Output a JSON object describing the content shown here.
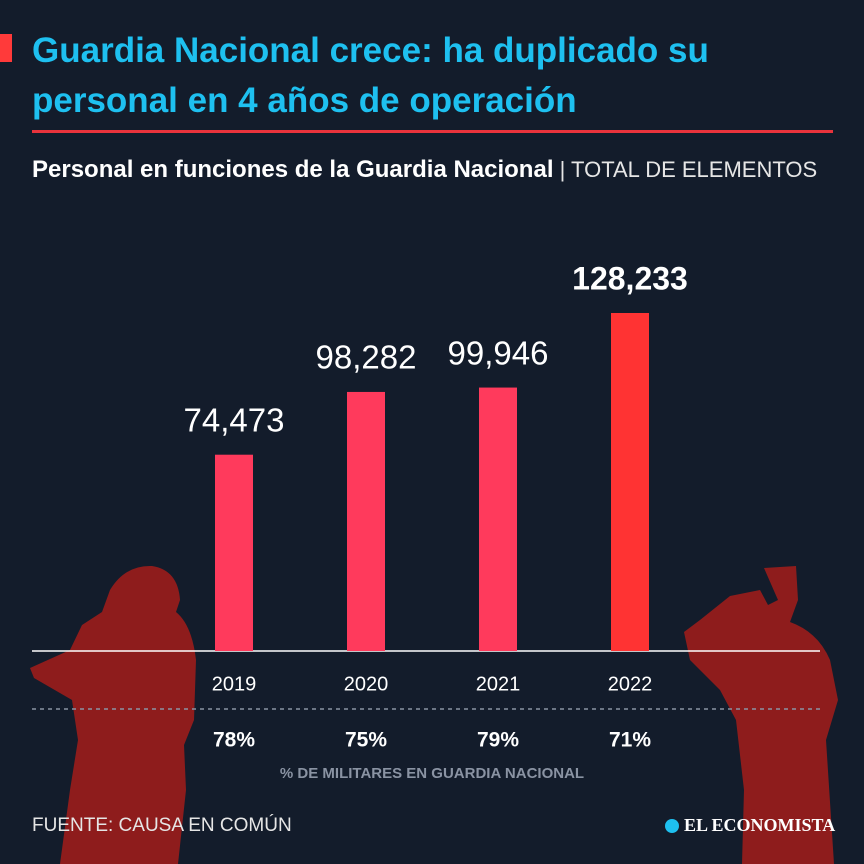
{
  "chart_data": {
    "type": "bar",
    "title": "Guardia Nacional crece: ha duplicado su personal en 4 años de operación",
    "subtitle": "Personal en funciones de la Guardia Nacional",
    "unit": "| TOTAL DE ELEMENTOS",
    "categories": [
      "2019",
      "2020",
      "2021",
      "2022"
    ],
    "values": [
      74473,
      98282,
      99946,
      128233
    ],
    "value_labels": [
      "74,473",
      "98,282",
      "99,946",
      "128,233"
    ],
    "colors": [
      "#ff3a5c",
      "#ff3a5c",
      "#ff3a5c",
      "#ff3333"
    ],
    "military_share": {
      "label": "% DE MILITARES EN GUARDIA NACIONAL",
      "values": [
        78,
        75,
        79,
        71
      ],
      "value_labels": [
        "78%",
        "75%",
        "79%",
        "71%"
      ]
    },
    "source": "FUENTE: CAUSA EN COMÚN",
    "brand": "EL ECONOMISTA"
  }
}
